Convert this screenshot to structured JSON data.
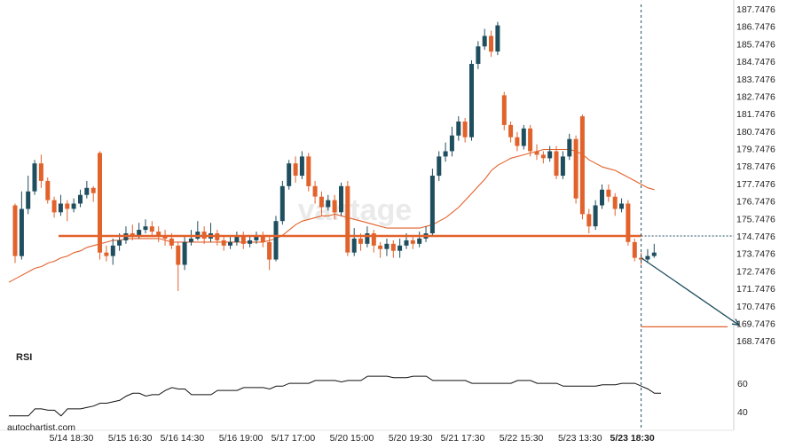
{
  "chart_data": [
    {
      "type": "candlestick",
      "watermark": "vantage",
      "source_label": "autochartist.com",
      "colors": {
        "up": "#1f4e5f",
        "down": "#e2622b",
        "ma": "#e2622b",
        "support": "#e2622b",
        "forecast_arrow": "#1f4e5f",
        "target_line": "#e2622b",
        "current_price_line": "#1f4e5f"
      },
      "x_labels": [
        "5/14 18:30",
        "5/15 16:30",
        "5/16 14:30",
        "5/16 19:00",
        "5/17 17:00",
        "5/20 15:00",
        "5/20 19:30",
        "5/21 17:30",
        "5/22 15:30",
        "5/23 13:30",
        "5/23 18:30"
      ],
      "x_label_bar_index": [
        10,
        19,
        27,
        36,
        44,
        53,
        62,
        70,
        79,
        88,
        96
      ],
      "highlight_x_label": "5/23 18:30",
      "y_ticks": [
        "187.7476",
        "186.7476",
        "185.7476",
        "184.7476",
        "183.7476",
        "182.7476",
        "181.7476",
        "180.7476",
        "179.7476",
        "178.7476",
        "177.7476",
        "176.7476",
        "175.7476",
        "174.7476",
        "173.7476",
        "172.7476",
        "171.7476",
        "170.7476",
        "169.7476",
        "168.7476"
      ],
      "ylim": [
        168.2,
        188.0
      ],
      "support_level": 174.75,
      "target_level": 169.55,
      "pattern_end_bar_index": 96,
      "forecast_start": 173.5,
      "forecast_end_bar_index": 111,
      "candles": [
        [
          176.5,
          173.6,
          176.6,
          173.2
        ],
        [
          173.6,
          176.3,
          177.3,
          173.4
        ],
        [
          176.3,
          177.3,
          178.2,
          176.0
        ],
        [
          177.3,
          178.9,
          179.1,
          177.1
        ],
        [
          178.9,
          177.9,
          179.4,
          177.5
        ],
        [
          177.9,
          176.8,
          178.1,
          176.6
        ],
        [
          176.8,
          176.1,
          177.0,
          175.8
        ],
        [
          176.1,
          176.6,
          177.1,
          175.9
        ],
        [
          176.6,
          176.3,
          176.8,
          175.6
        ],
        [
          176.3,
          176.6,
          176.9,
          176.1
        ],
        [
          176.6,
          177.1,
          177.4,
          176.4
        ],
        [
          177.1,
          177.5,
          177.9,
          176.9
        ],
        [
          177.5,
          177.2,
          177.6,
          176.7
        ],
        [
          179.5,
          173.8,
          179.6,
          173.4
        ],
        [
          173.8,
          173.6,
          174.2,
          173.3
        ],
        [
          173.6,
          174.2,
          174.6,
          173.1
        ],
        [
          174.2,
          174.5,
          174.9,
          173.9
        ],
        [
          174.5,
          174.9,
          175.3,
          174.3
        ],
        [
          174.9,
          174.7,
          175.4,
          174.5
        ],
        [
          174.7,
          175.1,
          175.5,
          174.6
        ],
        [
          175.1,
          175.3,
          175.7,
          174.9
        ],
        [
          175.3,
          175.0,
          175.6,
          174.8
        ],
        [
          175.0,
          174.7,
          175.3,
          174.4
        ],
        [
          174.7,
          174.6,
          175.1,
          174.2
        ],
        [
          174.6,
          174.2,
          174.9,
          174.0
        ],
        [
          174.2,
          173.1,
          174.4,
          171.6
        ],
        [
          173.1,
          174.4,
          174.7,
          172.8
        ],
        [
          174.4,
          174.6,
          175.1,
          174.2
        ],
        [
          174.6,
          175.0,
          175.6,
          174.5
        ],
        [
          175.0,
          174.6,
          175.3,
          174.3
        ],
        [
          174.6,
          174.9,
          175.5,
          174.4
        ],
        [
          174.9,
          174.5,
          175.1,
          174.2
        ],
        [
          174.5,
          174.2,
          174.8,
          173.9
        ],
        [
          174.2,
          174.4,
          174.7,
          174.0
        ],
        [
          174.4,
          174.7,
          175.0,
          174.2
        ],
        [
          174.7,
          174.3,
          175.0,
          174.0
        ],
        [
          174.3,
          174.5,
          174.8,
          174.1
        ],
        [
          174.5,
          174.7,
          175.0,
          174.3
        ],
        [
          174.7,
          174.4,
          175.0,
          174.1
        ],
        [
          174.4,
          173.4,
          174.7,
          172.8
        ],
        [
          173.4,
          175.6,
          175.9,
          173.3
        ],
        [
          175.6,
          177.6,
          177.9,
          175.4
        ],
        [
          177.6,
          178.9,
          179.1,
          177.4
        ],
        [
          178.9,
          178.2,
          179.3,
          177.8
        ],
        [
          178.2,
          179.3,
          179.6,
          178.0
        ],
        [
          179.3,
          177.6,
          179.5,
          177.3
        ],
        [
          177.6,
          177.0,
          177.9,
          176.6
        ],
        [
          177.0,
          176.4,
          177.3,
          175.9
        ],
        [
          176.4,
          176.8,
          177.1,
          176.2
        ],
        [
          176.8,
          176.1,
          177.1,
          175.7
        ],
        [
          176.1,
          177.6,
          177.8,
          175.9
        ],
        [
          177.6,
          173.8,
          177.9,
          173.6
        ],
        [
          173.8,
          174.6,
          175.2,
          173.6
        ],
        [
          174.6,
          174.3,
          174.9,
          173.9
        ],
        [
          174.3,
          174.9,
          175.3,
          174.1
        ],
        [
          174.9,
          174.2,
          175.1,
          173.8
        ],
        [
          174.2,
          174.0,
          174.4,
          173.5
        ],
        [
          174.0,
          174.3,
          174.6,
          173.6
        ],
        [
          174.3,
          173.9,
          174.5,
          173.5
        ],
        [
          173.9,
          174.2,
          174.6,
          173.5
        ],
        [
          174.2,
          174.5,
          174.9,
          174.0
        ],
        [
          174.5,
          174.3,
          174.8,
          174.0
        ],
        [
          174.3,
          174.6,
          175.0,
          174.1
        ],
        [
          174.6,
          174.9,
          175.3,
          174.4
        ],
        [
          174.9,
          178.2,
          178.6,
          174.8
        ],
        [
          178.2,
          179.3,
          179.6,
          177.9
        ],
        [
          179.3,
          179.6,
          180.1,
          179.0
        ],
        [
          179.6,
          180.5,
          181.0,
          179.3
        ],
        [
          180.5,
          181.3,
          181.6,
          180.2
        ],
        [
          181.3,
          180.4,
          181.5,
          180.1
        ],
        [
          180.4,
          184.6,
          184.8,
          180.2
        ],
        [
          184.6,
          185.6,
          185.9,
          184.3
        ],
        [
          185.6,
          186.2,
          186.6,
          185.4
        ],
        [
          186.2,
          185.3,
          186.5,
          185.0
        ],
        [
          185.3,
          186.8,
          187.0,
          185.1
        ],
        [
          182.8,
          181.1,
          183.0,
          180.8
        ],
        [
          181.1,
          180.4,
          181.3,
          180.1
        ],
        [
          180.4,
          179.9,
          180.7,
          179.6
        ],
        [
          179.9,
          180.9,
          181.1,
          179.7
        ],
        [
          180.9,
          179.6,
          181.1,
          179.3
        ],
        [
          179.6,
          179.4,
          180.0,
          179.1
        ],
        [
          179.4,
          179.2,
          179.6,
          178.9
        ],
        [
          179.2,
          179.6,
          179.9,
          179.0
        ],
        [
          179.6,
          178.2,
          179.9,
          178.0
        ],
        [
          178.2,
          179.3,
          179.6,
          178.0
        ],
        [
          179.3,
          180.3,
          180.6,
          179.1
        ],
        [
          180.3,
          176.9,
          180.5,
          176.6
        ],
        [
          181.6,
          176.0,
          181.7,
          175.7
        ],
        [
          176.0,
          175.3,
          176.3,
          174.9
        ],
        [
          175.3,
          176.5,
          176.8,
          175.1
        ],
        [
          176.5,
          177.4,
          177.7,
          176.3
        ],
        [
          177.4,
          177.0,
          177.7,
          176.7
        ],
        [
          177.0,
          176.3,
          177.2,
          175.9
        ],
        [
          176.3,
          176.6,
          176.9,
          176.1
        ],
        [
          176.6,
          174.4,
          176.8,
          174.2
        ],
        [
          174.4,
          173.5,
          174.6,
          173.3
        ],
        [
          173.5,
          173.4,
          173.8,
          173.1
        ],
        [
          173.4,
          173.6,
          174.0,
          173.2
        ],
        [
          173.6,
          173.8,
          174.3,
          173.5
        ]
      ],
      "ma": [
        172.1,
        172.3,
        172.5,
        172.7,
        172.9,
        173.0,
        173.2,
        173.3,
        173.5,
        173.6,
        173.8,
        173.9,
        174.1,
        174.2,
        174.3,
        174.4,
        174.5,
        174.5,
        174.6,
        174.6,
        174.6,
        174.6,
        174.6,
        174.6,
        174.5,
        174.4,
        174.4,
        174.4,
        174.4,
        174.4,
        174.4,
        174.4,
        174.4,
        174.4,
        174.4,
        174.4,
        174.4,
        174.4,
        174.4,
        174.4,
        174.5,
        174.6,
        174.8,
        175.1,
        175.4,
        175.6,
        175.7,
        175.8,
        175.9,
        175.9,
        176.0,
        175.9,
        175.8,
        175.7,
        175.6,
        175.5,
        175.4,
        175.3,
        175.2,
        175.2,
        175.2,
        175.2,
        175.2,
        175.2,
        175.3,
        175.4,
        175.6,
        175.8,
        176.1,
        176.4,
        176.8,
        177.2,
        177.6,
        178.0,
        178.5,
        178.8,
        179.0,
        179.2,
        179.3,
        179.4,
        179.5,
        179.6,
        179.7,
        179.7,
        179.7,
        179.7,
        179.7,
        179.6,
        179.4,
        179.1,
        178.9,
        178.7,
        178.6,
        178.5,
        178.3,
        178.1,
        177.9,
        177.7,
        177.5,
        177.4
      ],
      "rsi": {
        "label": "RSI",
        "y_ticks": [
          "60",
          "40"
        ],
        "ylim": [
          30,
          77
        ],
        "values": [
          37,
          37,
          37,
          37,
          42,
          42,
          41,
          41,
          37,
          42,
          42,
          42,
          43,
          44,
          46,
          46,
          47,
          48,
          51,
          53,
          53,
          51,
          52,
          52,
          55,
          57,
          56,
          56,
          52,
          52,
          52,
          52,
          55,
          55,
          55,
          55,
          57,
          57,
          57,
          57,
          56,
          58,
          58,
          60,
          60,
          60,
          60,
          62,
          62,
          62,
          62,
          61,
          62,
          62,
          62,
          65,
          65,
          65,
          65,
          64,
          64,
          64,
          65,
          65,
          65,
          62,
          62,
          62,
          62,
          62,
          62,
          60,
          60,
          60,
          60,
          60,
          60,
          60,
          62,
          62,
          62,
          60,
          60,
          60,
          60,
          58,
          58,
          58,
          58,
          58,
          58,
          59,
          59,
          59,
          60,
          60,
          60,
          58,
          56,
          53,
          53
        ]
      }
    }
  ]
}
